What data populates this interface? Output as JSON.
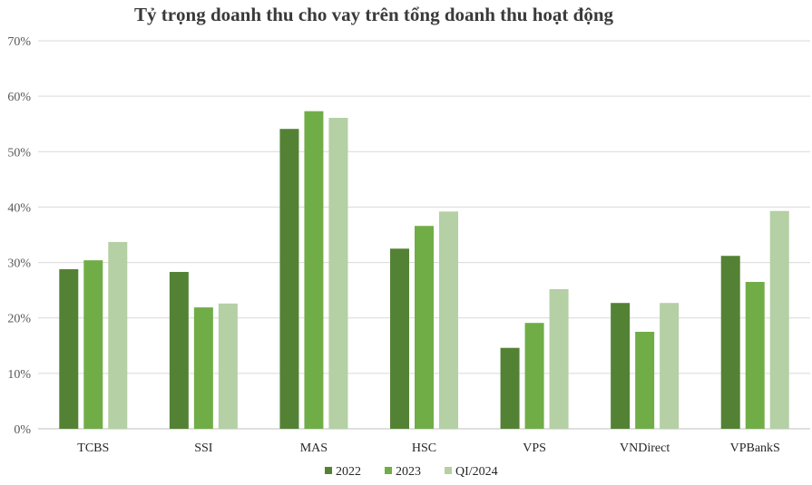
{
  "chart_data": {
    "type": "bar",
    "title": "Tỷ trọng doanh thu cho vay trên tổng doanh thu hoạt động",
    "xlabel": "",
    "ylabel": "",
    "categories": [
      "TCBS",
      "SSI",
      "MAS",
      "HSC",
      "VPS",
      "VNDirect",
      "VPBankS"
    ],
    "series": [
      {
        "name": "2022",
        "color": "#548235",
        "values": [
          28.8,
          28.3,
          54.1,
          32.5,
          14.6,
          22.7,
          31.2
        ]
      },
      {
        "name": "2023",
        "color": "#70ad47",
        "values": [
          30.4,
          21.9,
          57.3,
          36.6,
          19.1,
          17.5,
          26.5
        ]
      },
      {
        "name": "QI/2024",
        "color": "#b4d0a4",
        "values": [
          33.7,
          22.6,
          56.1,
          39.2,
          25.2,
          22.7,
          39.3
        ]
      }
    ],
    "ylim": [
      0,
      70
    ],
    "yticks": [
      "0%",
      "10%",
      "20%",
      "30%",
      "40%",
      "50%",
      "60%",
      "70%"
    ],
    "ytick_values": [
      0,
      10,
      20,
      30,
      40,
      50,
      60,
      70
    ],
    "grid": true,
    "legend": "bottom-center"
  }
}
